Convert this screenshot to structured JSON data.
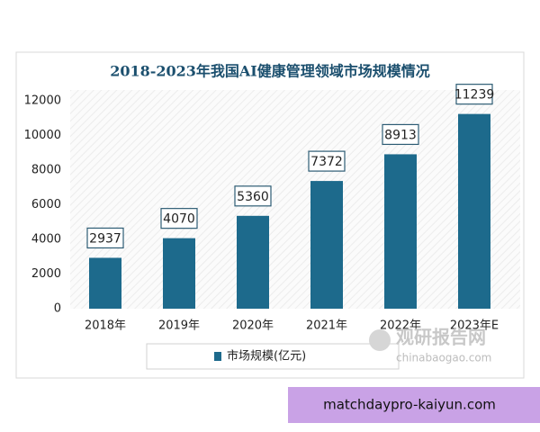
{
  "chart_data": {
    "type": "bar",
    "title": "2018-2023年我国AI健康管理领域市场规模情况",
    "categories": [
      "2018年",
      "2019年",
      "2020年",
      "2021年",
      "2022年",
      "2023年E"
    ],
    "series": [
      {
        "name": "市场规模(亿元)",
        "color": "#1d6a8c",
        "values": [
          2937,
          4070,
          5360,
          7372,
          8913,
          11239
        ]
      }
    ],
    "ylim": [
      0,
      12000
    ],
    "yticks": [
      0,
      2000,
      4000,
      6000,
      8000,
      10000,
      12000
    ],
    "grid": false
  },
  "watermark": {
    "name": "观研报告网",
    "url": "chinabaogao.com"
  },
  "banner": "matchdaypro-kaiyun.com"
}
